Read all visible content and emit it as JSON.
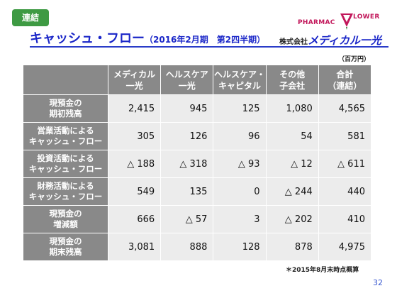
{
  "badge": "連結",
  "title": {
    "main": "キャッシュ・フロー",
    "sub": "（2016年2月期　第2四半期）"
  },
  "logo": {
    "text_left": "PHARMAC",
    "text_right": "LOWER",
    "color": "#c2185b"
  },
  "company": {
    "prefix": "株式会社",
    "name": "メディカル一光"
  },
  "unit": "（百万円）",
  "table": {
    "columns": [
      [
        "メディカル",
        "一光"
      ],
      [
        "ヘルスケア",
        "一光"
      ],
      [
        "ヘルスケア・",
        "キャピタル"
      ],
      [
        "その他",
        "子会社"
      ],
      [
        "合計",
        "（連結）"
      ]
    ],
    "rows": [
      {
        "label": [
          "現預金の",
          "期初残高"
        ],
        "values": [
          "2,415",
          "945",
          "125",
          "1,080",
          "4,565"
        ]
      },
      {
        "label": [
          "営業活動による",
          "キャッシュ・フロー"
        ],
        "values": [
          "305",
          "126",
          "96",
          "54",
          "581"
        ]
      },
      {
        "label": [
          "投資活動による",
          "キャッシュ・フロー"
        ],
        "values": [
          "△ 188",
          "△ 318",
          "△ 93",
          "△ 12",
          "△ 611"
        ]
      },
      {
        "label": [
          "財務活動による",
          "キャッシュ・フロー"
        ],
        "values": [
          "549",
          "135",
          "0",
          "△ 244",
          "440"
        ]
      },
      {
        "label": [
          "現預金の",
          "増減額"
        ],
        "values": [
          "666",
          "△ 57",
          "3",
          "△ 202",
          "410"
        ]
      },
      {
        "label": [
          "現預金の",
          "期末残高"
        ],
        "values": [
          "3,081",
          "888",
          "128",
          "878",
          "4,975"
        ]
      }
    ]
  },
  "note": "＊2015年8月末時点概算",
  "page_number": "32"
}
